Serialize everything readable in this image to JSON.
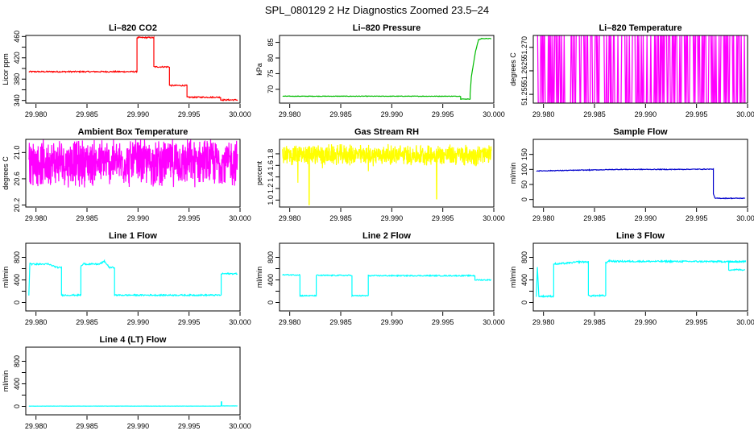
{
  "title": "SPL_080129  2 Hz Diagnostics Zoomed 23.5–24",
  "chart_data": [
    {
      "type": "line",
      "title": "Li–820 CO2",
      "ylabel": "Licor ppm",
      "xlim": [
        29.979,
        30.0
      ],
      "ylim": [
        335,
        462
      ],
      "xticks": [
        29.98,
        29.985,
        29.99,
        29.995,
        30.0
      ],
      "xtick_labels": [
        "29.980",
        "29.985",
        "29.990",
        "29.995",
        "30.000"
      ],
      "yticks": [
        340,
        360,
        380,
        400,
        420,
        440,
        460
      ],
      "ytick_labels": [
        "340",
        "",
        "380",
        "",
        "420",
        "",
        "460"
      ],
      "color": "#ff0000",
      "series": [
        {
          "name": "CO2",
          "style": "step",
          "noise": 1.2,
          "x": [
            29.9793,
            29.9899,
            29.9899,
            29.99155,
            29.99155,
            29.99308,
            29.99308,
            29.9948,
            29.9948,
            29.9981,
            29.9981,
            29.99975
          ],
          "y": [
            394,
            394,
            458,
            458,
            403,
            403,
            368,
            368,
            346,
            346,
            341,
            341
          ]
        }
      ]
    },
    {
      "type": "line",
      "title": "Li–820 Pressure",
      "ylabel": "kPa",
      "xlim": [
        29.979,
        30.0
      ],
      "ylim": [
        65.6,
        87.2
      ],
      "xticks": [
        29.98,
        29.985,
        29.99,
        29.995,
        30.0
      ],
      "xtick_labels": [
        "29.980",
        "29.985",
        "29.990",
        "29.995",
        "30.000"
      ],
      "yticks": [
        70,
        75,
        80,
        85
      ],
      "ytick_labels": [
        "70",
        "75",
        "80",
        "85"
      ],
      "color": "#00bb00",
      "series": [
        {
          "name": "Pressure",
          "style": "step",
          "noise": 0.08,
          "x": [
            29.9793,
            29.99675,
            29.99675,
            29.99768,
            29.99768,
            29.9978,
            29.9982,
            29.9985,
            29.9988,
            29.99975
          ],
          "y": [
            67.8,
            67.8,
            66.9,
            66.9,
            68.5,
            74,
            82,
            85.8,
            86.2,
            86.2
          ]
        }
      ]
    },
    {
      "type": "line",
      "title": "Li–820 Temperature",
      "ylabel": "degrees C",
      "xlim": [
        29.979,
        30.0
      ],
      "ylim": [
        51.2522,
        51.2738
      ],
      "xticks": [
        29.98,
        29.985,
        29.99,
        29.995,
        30.0
      ],
      "xtick_labels": [
        "29.980",
        "29.985",
        "29.990",
        "29.995",
        "30.000"
      ],
      "yticks": [
        51.255,
        51.2625,
        51.27
      ],
      "ytick_labels": [
        "51.255",
        "51.2625",
        "51.270"
      ],
      "color": "#ff00ff",
      "series": [
        {
          "name": "Temperature",
          "style": "binary",
          "low": 51.2522,
          "high": 51.2738,
          "x0": 29.9793,
          "x1": 29.99975,
          "n": 330
        }
      ]
    },
    {
      "type": "line",
      "title": "Ambient Box Temperature",
      "ylabel": "degrees C",
      "xlim": [
        29.979,
        30.0
      ],
      "ylim": [
        20.17,
        21.2
      ],
      "xticks": [
        29.98,
        29.985,
        29.99,
        29.995,
        30.0
      ],
      "xtick_labels": [
        "29.980",
        "29.985",
        "29.990",
        "29.995",
        "30.000"
      ],
      "yticks": [
        20.2,
        20.6,
        21.0
      ],
      "ytick_labels": [
        "20.2",
        "20.6",
        "21.0"
      ],
      "color": "#ff00ff",
      "series": [
        {
          "name": "Box Temp",
          "style": "noise",
          "mean": 20.85,
          "amp": 0.4,
          "x0": 29.9793,
          "x1": 29.99975,
          "n": 900
        }
      ]
    },
    {
      "type": "line",
      "title": "Gas Stream RH",
      "ylabel": "percent",
      "xlim": [
        29.979,
        30.0
      ],
      "ylim": [
        0.88,
        2.05
      ],
      "xticks": [
        29.98,
        29.985,
        29.99,
        29.995,
        30.0
      ],
      "xtick_labels": [
        "29.980",
        "29.985",
        "29.990",
        "29.995",
        "30.000"
      ],
      "yticks": [
        1.0,
        1.2,
        1.4,
        1.6,
        1.8
      ],
      "ytick_labels": [
        "1.0",
        "1.2",
        "1.4",
        "1.6",
        "1.8"
      ],
      "color": "#ffff00",
      "series": [
        {
          "name": "RH",
          "style": "noise",
          "mean": 1.78,
          "amp": 0.2,
          "x0": 29.9793,
          "x1": 29.99975,
          "n": 900,
          "spikes": [
            [
              29.9808,
              1.3
            ],
            [
              29.9819,
              0.92
            ],
            [
              29.9832,
              1.55
            ],
            [
              29.9877,
              1.5
            ],
            [
              29.9944,
              1.02
            ],
            [
              29.9983,
              1.6
            ]
          ]
        }
      ]
    },
    {
      "type": "line",
      "title": "Sample Flow",
      "ylabel": "ml/min",
      "xlim": [
        29.979,
        30.0
      ],
      "ylim": [
        -25,
        200
      ],
      "xticks": [
        29.98,
        29.985,
        29.99,
        29.995,
        30.0
      ],
      "xtick_labels": [
        "29.980",
        "29.985",
        "29.990",
        "29.995",
        "30.000"
      ],
      "yticks": [
        0,
        50,
        100,
        150
      ],
      "ytick_labels": [
        "0",
        "50",
        "100",
        "150"
      ],
      "color": "#0000cc",
      "series": [
        {
          "name": "Sample Flow",
          "style": "step",
          "noise": 1.2,
          "x": [
            29.9793,
            29.9845,
            29.9875,
            29.9925,
            29.99665,
            29.99665,
            29.9968,
            29.99975
          ],
          "y": [
            95,
            98,
            100,
            100,
            101,
            20,
            4,
            4
          ]
        }
      ]
    },
    {
      "type": "line",
      "title": "Line 1 Flow",
      "ylabel": "ml/min",
      "xlim": [
        29.979,
        30.0
      ],
      "ylim": [
        -150,
        1050
      ],
      "xticks": [
        29.98,
        29.985,
        29.99,
        29.995,
        30.0
      ],
      "xtick_labels": [
        "29.980",
        "29.985",
        "29.990",
        "29.995",
        "30.000"
      ],
      "yticks": [
        0,
        200,
        400,
        600,
        800
      ],
      "ytick_labels": [
        "0",
        "",
        "400",
        "",
        "800"
      ],
      "color": "#00ffff",
      "series": [
        {
          "name": "Line 1",
          "style": "step",
          "noise": 12,
          "x": [
            29.9793,
            29.9794,
            29.9796,
            29.9812,
            29.9821,
            29.9825,
            29.9825,
            29.9844,
            29.9844,
            29.9847,
            29.9849,
            29.9862,
            29.9867,
            29.9872,
            29.9877,
            29.9877,
            29.99815,
            29.99815,
            29.99975
          ],
          "y": [
            120,
            700,
            680,
            680,
            620,
            620,
            130,
            130,
            640,
            690,
            680,
            680,
            730,
            620,
            620,
            130,
            130,
            510,
            510
          ]
        }
      ]
    },
    {
      "type": "line",
      "title": "Line 2 Flow",
      "ylabel": "ml/min",
      "xlim": [
        29.979,
        30.0
      ],
      "ylim": [
        -150,
        1050
      ],
      "xticks": [
        29.98,
        29.985,
        29.99,
        29.995,
        30.0
      ],
      "xtick_labels": [
        "29.980",
        "29.985",
        "29.990",
        "29.995",
        "30.000"
      ],
      "yticks": [
        0,
        200,
        400,
        600,
        800
      ],
      "ytick_labels": [
        "0",
        "",
        "400",
        "",
        "800"
      ],
      "color": "#00ffff",
      "series": [
        {
          "name": "Line 2",
          "style": "step",
          "noise": 10,
          "x": [
            29.9793,
            29.981,
            29.981,
            29.9826,
            29.9826,
            29.9861,
            29.9861,
            29.9877,
            29.9877,
            29.99815,
            29.99815,
            29.99975
          ],
          "y": [
            490,
            490,
            120,
            120,
            480,
            480,
            120,
            120,
            475,
            475,
            400,
            400
          ]
        }
      ]
    },
    {
      "type": "line",
      "title": "Line 3 Flow",
      "ylabel": "ml/min",
      "xlim": [
        29.979,
        30.0
      ],
      "ylim": [
        -150,
        1050
      ],
      "xticks": [
        29.98,
        29.985,
        29.99,
        29.995,
        30.0
      ],
      "xtick_labels": [
        "29.980",
        "29.985",
        "29.990",
        "29.995",
        "30.000"
      ],
      "yticks": [
        0,
        200,
        400,
        600,
        800
      ],
      "ytick_labels": [
        "0",
        "",
        "400",
        "",
        "800"
      ],
      "color": "#00ffff",
      "series": [
        {
          "name": "Line 3",
          "style": "step",
          "noise": 14,
          "x": [
            29.9793,
            29.9794,
            29.97955,
            29.981,
            29.981,
            29.9812,
            29.9825,
            29.9834,
            29.9844,
            29.9844,
            29.9861,
            29.9861,
            29.9864,
            29.9869,
            29.9998,
            29.99815,
            29.99815,
            29.99975
          ],
          "y": [
            110,
            620,
            110,
            110,
            690,
            680,
            700,
            720,
            720,
            120,
            120,
            700,
            740,
            730,
            725,
            725,
            580,
            580
          ]
        }
      ]
    },
    {
      "type": "line",
      "title": "Line 4 (LT) Flow",
      "ylabel": "ml/min",
      "xlim": [
        29.979,
        30.0
      ],
      "ylim": [
        -150,
        1050
      ],
      "xticks": [
        29.98,
        29.985,
        29.99,
        29.995,
        30.0
      ],
      "xtick_labels": [
        "29.980",
        "29.985",
        "29.990",
        "29.995",
        "30.000"
      ],
      "yticks": [
        0,
        200,
        400,
        600,
        800
      ],
      "ytick_labels": [
        "0",
        "",
        "400",
        "",
        "800"
      ],
      "color": "#00ffff",
      "series": [
        {
          "name": "Line 4",
          "style": "step",
          "noise": 1.5,
          "x": [
            29.9793,
            29.99815,
            29.99815,
            29.9982,
            29.9982,
            29.99975
          ],
          "y": [
            5,
            5,
            80,
            80,
            8,
            8
          ]
        }
      ]
    }
  ]
}
